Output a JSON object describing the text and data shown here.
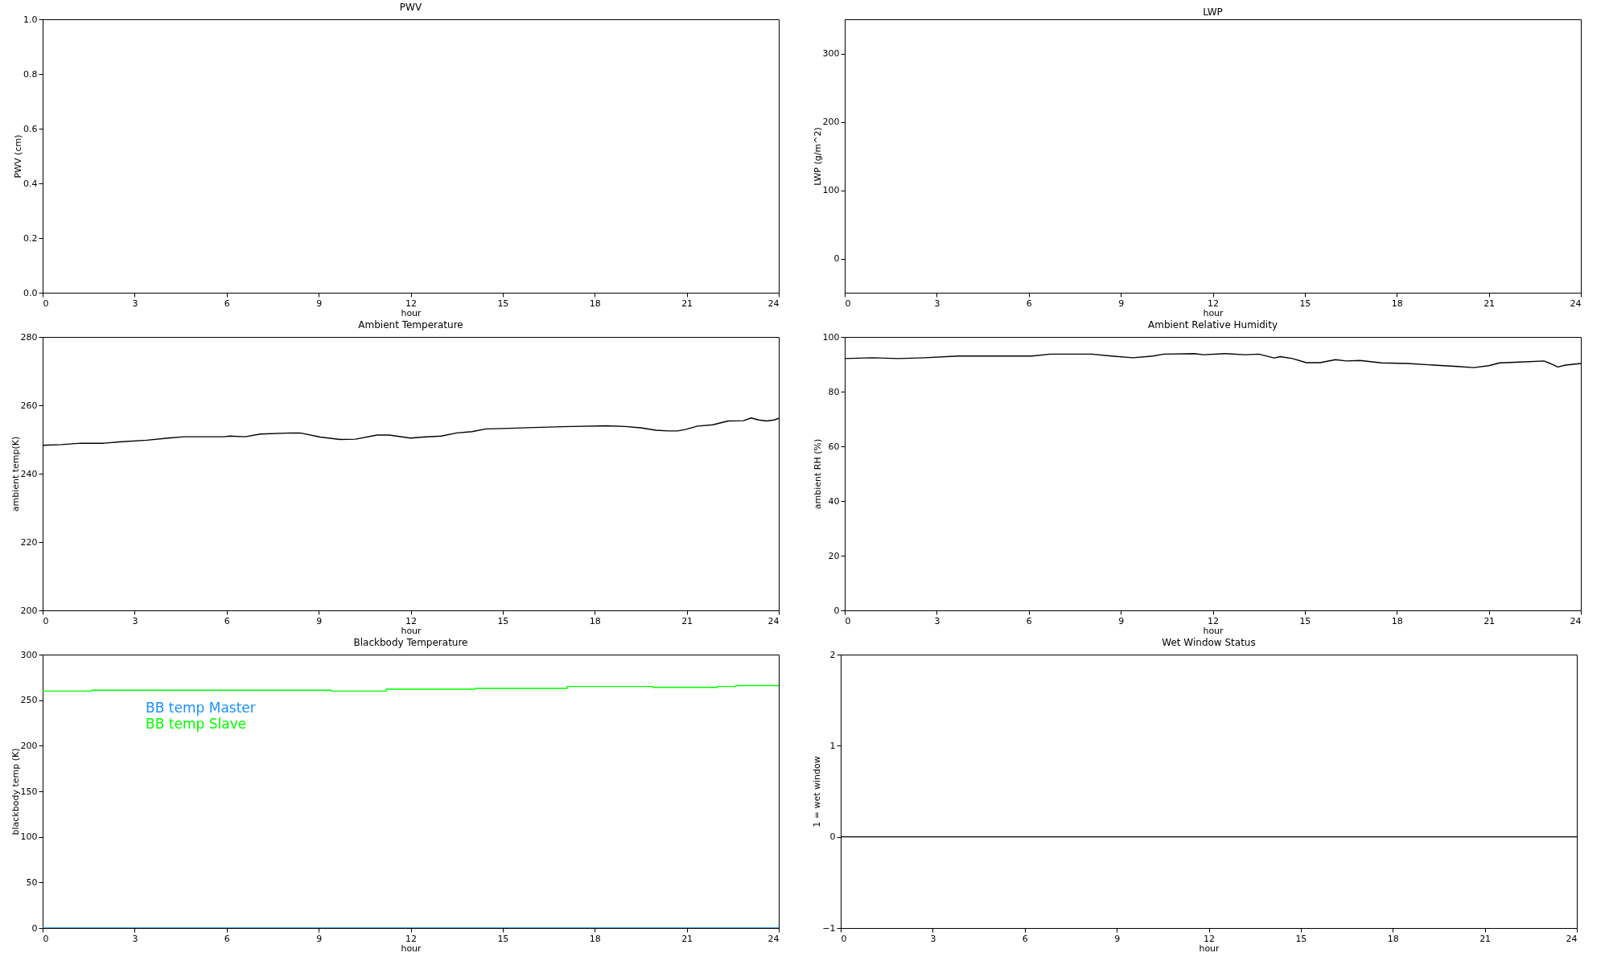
{
  "chart_data": [
    {
      "type": "line",
      "title": "PWV",
      "xlabel": "hour",
      "ylabel": "PWV (cm)",
      "xlim": [
        0,
        24
      ],
      "xticks": [
        0,
        3,
        6,
        9,
        12,
        15,
        18,
        21,
        24
      ],
      "ylim": [
        0,
        1
      ],
      "yticks": [
        {
          "value": 0,
          "label": "0.0"
        },
        0.2,
        0.4,
        0.6,
        0.8,
        {
          "value": 1,
          "label": "1.0"
        }
      ]
    },
    {
      "type": "line",
      "title": "LWP",
      "xlabel": "hour",
      "ylabel": "LWP (g/m^2)",
      "xlim": [
        0,
        24
      ],
      "xticks": [
        0,
        3,
        6,
        9,
        12,
        15,
        18,
        21,
        24
      ],
      "ylim": [
        -50,
        350
      ],
      "yticks": [
        0,
        100,
        200,
        300
      ]
    },
    {
      "type": "line",
      "title": "Ambient Temperature",
      "xlabel": "hour",
      "ylabel": "ambient temp(K)",
      "x": [
        0,
        0.6,
        1.25,
        2.0,
        2.5,
        3.4,
        4.1,
        4.6,
        5.9,
        6.1,
        6.6,
        7.1,
        8.1,
        8.4,
        9.05,
        9.7,
        10.2,
        10.9,
        11.3,
        12.0,
        12.4,
        13.0,
        13.5,
        14.0,
        14.45,
        15.0,
        16.0,
        17.2,
        18.4,
        19.0,
        19.5,
        20.0,
        20.4,
        20.7,
        20.95,
        21.35,
        21.85,
        22.35,
        22.85,
        23.1,
        23.35,
        23.6,
        23.85,
        24.0
      ],
      "series": [
        {
          "color": "#000000",
          "values": [
            248.3,
            248.5,
            248.9,
            248.9,
            249.3,
            249.8,
            250.4,
            250.8,
            250.8,
            251.0,
            250.8,
            251.6,
            251.9,
            251.9,
            250.7,
            250.0,
            250.1,
            251.3,
            251.3,
            250.4,
            250.7,
            251.0,
            251.9,
            252.3,
            253.1,
            253.2,
            253.5,
            253.8,
            254.0,
            253.8,
            253.4,
            252.7,
            252.5,
            252.5,
            252.9,
            253.9,
            254.3,
            255.4,
            255.5,
            256.3,
            255.7,
            255.4,
            255.7,
            256.2
          ]
        }
      ],
      "xlim": [
        0,
        24
      ],
      "xticks": [
        0,
        3,
        6,
        9,
        12,
        15,
        18,
        21,
        24
      ],
      "ylim": [
        200,
        280
      ],
      "yticks": [
        200,
        220,
        240,
        260,
        280
      ]
    },
    {
      "type": "line",
      "title": "Ambient Relative Humidity",
      "xlabel": "hour",
      "ylabel": "ambient RH (%)",
      "x": [
        0,
        0.9,
        1.75,
        2.6,
        3.7,
        5.1,
        6.1,
        6.7,
        8.05,
        8.7,
        9.4,
        10.05,
        10.4,
        11.4,
        11.7,
        12.4,
        13.05,
        13.5,
        14.0,
        14.2,
        14.6,
        15.05,
        15.5,
        16.0,
        16.35,
        16.8,
        17.5,
        18.35,
        19.2,
        20.0,
        20.5,
        21.0,
        21.35,
        22.0,
        22.8,
        23.0,
        23.25,
        23.5,
        24.0
      ],
      "series": [
        {
          "color": "#000000",
          "values": [
            92.1,
            92.4,
            92.1,
            92.4,
            93.0,
            93.0,
            93.0,
            93.7,
            93.7,
            93.0,
            92.4,
            93.0,
            93.7,
            93.9,
            93.5,
            93.9,
            93.5,
            93.7,
            92.3,
            92.8,
            92.1,
            90.6,
            90.6,
            91.7,
            91.2,
            91.4,
            90.5,
            90.3,
            89.7,
            89.2,
            88.8,
            89.5,
            90.5,
            90.8,
            91.2,
            90.3,
            89.0,
            89.7,
            90.3
          ]
        }
      ],
      "xlim": [
        0,
        24
      ],
      "xticks": [
        0,
        3,
        6,
        9,
        12,
        15,
        18,
        21,
        24
      ],
      "ylim": [
        0,
        100
      ],
      "yticks": [
        0,
        20,
        40,
        60,
        80,
        100
      ]
    },
    {
      "type": "step",
      "title": "Blackbody Temperature",
      "xlabel": "hour",
      "ylabel": "blackbody temp (K)",
      "legend": "top left",
      "series": [
        {
          "name": "BB temp Master",
          "color": "#1e90ff",
          "x": [
            0,
            24
          ],
          "values": [
            0,
            0
          ]
        },
        {
          "name": "BB temp Slave",
          "color": "#00ff00",
          "x": [
            0,
            1.6,
            9.4,
            11.2,
            14.1,
            17.1,
            19.9,
            22.0,
            22.6,
            24
          ],
          "values": [
            260,
            261,
            260,
            262,
            263,
            265,
            264,
            265,
            266,
            266
          ]
        }
      ],
      "xlim": [
        0,
        24
      ],
      "xticks": [
        0,
        3,
        6,
        9,
        12,
        15,
        18,
        21,
        24
      ],
      "ylim": [
        0,
        300
      ],
      "yticks": [
        0,
        50,
        100,
        150,
        200,
        250,
        300
      ]
    },
    {
      "type": "line",
      "title": "Wet Window Status",
      "xlabel": "hour",
      "ylabel": "1 = wet window",
      "x": [
        0,
        24
      ],
      "series": [
        {
          "color": "#000000",
          "values": [
            0,
            0
          ]
        }
      ],
      "xlim": [
        0,
        24
      ],
      "xticks": [
        0,
        3,
        6,
        9,
        12,
        15,
        18,
        21,
        24
      ],
      "ylim": [
        -1,
        2
      ],
      "yticks": [
        -1,
        0,
        1,
        2
      ]
    }
  ]
}
